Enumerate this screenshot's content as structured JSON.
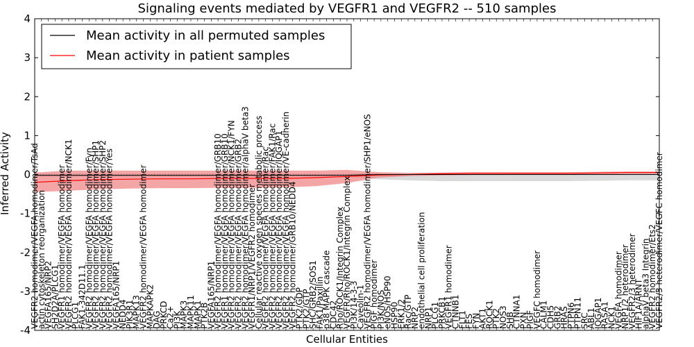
{
  "chart_data": {
    "type": "line",
    "title": "Signaling events mediated by VEGFR1 and VEGFR2 -- 510 samples",
    "xlabel": "Cellular Entities",
    "ylabel": "Inferred Activity",
    "ylim": [
      -4,
      4
    ],
    "yticks": [
      -4,
      -3,
      -2,
      -1,
      0,
      1,
      2,
      3,
      4
    ],
    "grid": false,
    "legend_position": "top-left",
    "colors": {
      "permuted_line": "#000000",
      "patient_line": "#ff0000",
      "patient_band": "#f08080",
      "permuted_band": "#bbbbbb"
    },
    "series": [
      {
        "name": "Mean activity in all permuted samples",
        "color": "#000000"
      },
      {
        "name": "Mean activity in patient samples",
        "color": "#ff0000"
      }
    ],
    "entities": [
      "VEGFR2 homodimer/VEGFA homodimer/TsAd",
      "actin cytoskeleton reorganization",
      "VEGFA165/NRP2",
      "SH2D2A/PLCG1",
      "VEGFR1 homodimer/VEGFA homodimer",
      "VEGFR2 homodimer/VEGFA homodimer/NCK1",
      "PLCG1",
      "FAK1-342D11.1",
      "VEGFR2 homodimer/VEGFA homodimer/Fyn",
      "VEGFR2 homodimer/VEGFA homodimer/SHP1",
      "VEGFR2 homodimer/VEGFA homodimer/SHP2",
      "VEGFR2 homodimer/VEGFA homodimer/Yes",
      "VEGFA165/NRP1",
      "NEDD4",
      "PIK3R1",
      "MAPK13",
      "VEGFR2 homodimer/VEGFA homodimer",
      "MAPKAPK2",
      "DAG",
      "PRKCD",
      "Ca2+",
      "PI3K",
      "MAPK3",
      "MAPK11",
      "MAPK1",
      "PTK2B",
      "VEGFA165/NRP1",
      "VEGFR2 homodimer/VEGFA homodimer/GRB10",
      "VEGFR1 homodimer/VEGFA homodimer/GRB10",
      "VEGFR2 homodimer/VEGFA homodimer/NCK1/FYN",
      "VEGFR2 homodimer/VEGFA homodimer/GRB2",
      "VEGFR2 homodimer/VEGFA homodimer/alphaV beta3",
      "VEGFR1/NRP1/VEGFR2 homodimer",
      "Cellular reactive oxygen species metabolic process",
      "VEGFR2 homodimer/VEGFA homodimer/Rac",
      "VEGFR2 homodimer/VEGFA homodimer/FAK1/Rac",
      "VEGFR2 homodimer/VEGFA homodimer/IQGAP1",
      "VEGFR2 homodimer/VEGFA homodimer/VE-cadherin",
      "VEGFR2 homodimer/GRB10/NEDD4",
      "PTK2/GDP",
      "PTK2/GTP",
      "SHC/GRB2/SOS1",
      "FAK1/Paxillin",
      "p38 MAPK cascade",
      "CDC42",
      "Rho/ROCK1/Integrin Complex",
      "VEGFR/Rho/ROCK1/Integrin Complex",
      "PI3K/14-3-3",
      "Caveolin-1",
      "VEGFR2 homodimer/VEGFA homodimer/SHP1/eNOS",
      "PIGF homodimer",
      "PI3K/NOS",
      "eNOS/HSP90",
      "HSP90",
      "ERK1/2",
      "Rac/GTP",
      "NRP2",
      "endothelial cell proliferation",
      "NRP1",
      "PLCG1",
      "PRKCB1",
      "VEGFR1 homodimer",
      "CTNNB1",
      "FLT1",
      "FES",
      "FYN",
      "AKT1",
      "ROCK1",
      "PTK2",
      "NOS3",
      "SHB",
      "CTNNA1",
      "PXN",
      "PIGF",
      "VEGFC homodimer",
      "CALM1",
      "CDH5",
      "GRB2",
      "HRAS",
      "PTPN6",
      "PTPN11",
      "SRC",
      "ABL1",
      "IQGAP1",
      "RASA1",
      "NCK1",
      "VEGFA homodimer",
      "NRP1/2 heterodimer",
      "VEGFR2/3 heterodimer",
      "HIF1A/ARNT",
      "alphaV beta3 Integrin",
      "VEGFR2 homodimer/Ets2",
      "VEGFR2/3 heterodimer/VEGFC homodimer"
    ],
    "x": [
      0,
      0.05,
      0.1,
      0.15,
      0.2,
      0.25,
      0.3,
      0.35,
      0.4,
      0.45,
      0.5,
      0.55,
      0.6,
      0.65,
      0.7,
      0.75,
      0.8,
      0.85,
      0.9,
      0.95,
      1.0
    ],
    "patient_mean": [
      -0.2,
      -0.16,
      -0.13,
      -0.12,
      -0.11,
      -0.11,
      -0.1,
      -0.1,
      -0.1,
      -0.08,
      -0.05,
      -0.01,
      0.0,
      0.02,
      0.03,
      0.03,
      0.03,
      0.03,
      0.04,
      0.05,
      0.05
    ],
    "patient_upper": [
      0.05,
      0.1,
      0.1,
      0.1,
      0.1,
      0.1,
      0.1,
      0.1,
      0.1,
      0.1,
      0.12,
      0.06,
      0.04,
      0.05,
      0.06,
      0.06,
      0.06,
      0.06,
      0.07,
      0.08,
      0.08
    ],
    "patient_lower": [
      -0.45,
      -0.42,
      -0.38,
      -0.36,
      -0.35,
      -0.35,
      -0.34,
      -0.34,
      -0.33,
      -0.3,
      -0.22,
      -0.08,
      -0.04,
      -0.02,
      -0.01,
      -0.01,
      0.0,
      0.0,
      0.01,
      0.02,
      0.02
    ],
    "permuted_mean": [
      -0.02,
      -0.02,
      -0.02,
      -0.02,
      -0.02,
      -0.02,
      -0.02,
      -0.02,
      -0.02,
      -0.02,
      -0.02,
      0.0,
      0.0,
      0.0,
      0.0,
      0.0,
      0.0,
      0.0,
      0.0,
      0.0,
      0.0
    ],
    "permuted_upper": [
      0.02,
      0.02,
      0.02,
      0.02,
      0.02,
      0.02,
      0.02,
      0.02,
      0.02,
      0.02,
      0.02,
      0.05,
      0.05,
      0.05,
      0.05,
      0.05,
      0.05,
      0.05,
      0.05,
      0.05,
      0.05
    ],
    "permuted_lower": [
      -0.06,
      -0.06,
      -0.06,
      -0.06,
      -0.06,
      -0.06,
      -0.06,
      -0.06,
      -0.06,
      -0.06,
      -0.06,
      -0.12,
      -0.15,
      -0.17,
      -0.17,
      -0.17,
      -0.17,
      -0.17,
      -0.16,
      -0.15,
      -0.15
    ]
  }
}
